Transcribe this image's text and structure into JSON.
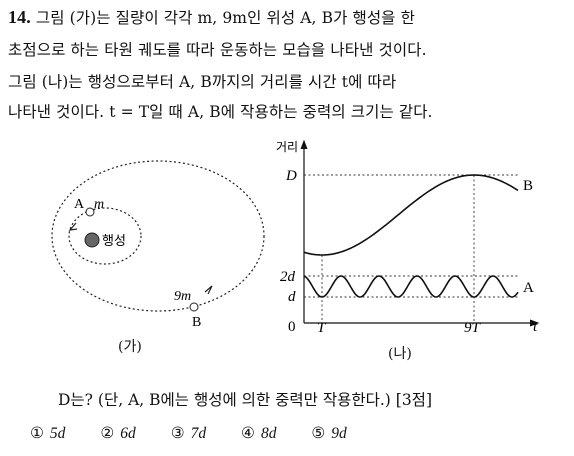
{
  "question": {
    "number": "14.",
    "lines": [
      "그림 (가)는 질량이 각각 m, 9m인 위성 A, B가 행성을 한",
      "초점으로 하는 타원 궤도를 따라 운동하는 모습을 나타낸 것이다.",
      "그림 (나)는 행성으로부터 A, B까지의 거리를 시간 t에 따라",
      "나타낸 것이다. t = T일 때 A, B에 작용하는 중력의 크기는 같다."
    ],
    "sub_question": "D는? (단, A, B에는 행성에 의한 중력만 작용한다.) [3점]"
  },
  "figure_a": {
    "caption": "(가)",
    "planet_label": "행성",
    "satellite_a_label": "A",
    "satellite_a_mass": "m",
    "satellite_b_label": "B",
    "satellite_b_mass": "9m"
  },
  "figure_b": {
    "caption": "(나)",
    "y_axis_label": "거리",
    "x_axis_label": "t",
    "origin_label": "0",
    "tick_T": "T",
    "tick_9T": "9T",
    "level_D": "D",
    "level_2d": "2d",
    "level_d": "d",
    "series_b_label": "B",
    "series_a_label": "A"
  },
  "choices": [
    {
      "num": "①",
      "text": "5d"
    },
    {
      "num": "②",
      "text": "6d"
    },
    {
      "num": "③",
      "text": "7d"
    },
    {
      "num": "④",
      "text": "8d"
    },
    {
      "num": "⑤",
      "text": "9d"
    }
  ]
}
